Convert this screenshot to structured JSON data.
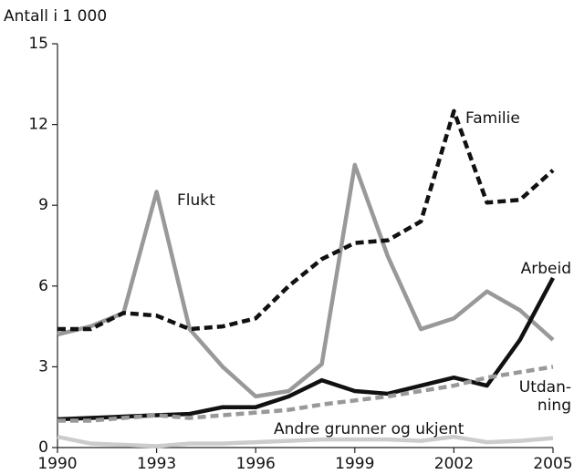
{
  "chart_data": {
    "type": "line",
    "ylabel": "Antall i 1 000",
    "x": [
      1990,
      1991,
      1992,
      1993,
      1994,
      1995,
      1996,
      1997,
      1998,
      1999,
      2000,
      2001,
      2002,
      2003,
      2004,
      2005
    ],
    "xlim": [
      1990,
      2005
    ],
    "xticks": [
      1990,
      1993,
      1996,
      1999,
      2002,
      2005
    ],
    "ylim": [
      0,
      15
    ],
    "yticks": [
      0,
      3,
      6,
      9,
      12,
      15
    ],
    "grid": false,
    "series": [
      {
        "name": "Flukt",
        "color": "#999999",
        "dash": false,
        "values": [
          4.2,
          4.5,
          5.0,
          9.5,
          4.4,
          3.0,
          1.9,
          2.1,
          3.1,
          10.5,
          7.1,
          4.4,
          4.8,
          5.8,
          5.1,
          4.0
        ]
      },
      {
        "name": "Familie",
        "color": "#111111",
        "dash": true,
        "values": [
          4.4,
          4.4,
          5.0,
          4.9,
          4.4,
          4.5,
          4.8,
          6.0,
          7.0,
          7.6,
          7.7,
          8.4,
          12.5,
          9.1,
          9.2,
          10.3
        ]
      },
      {
        "name": "Arbeid",
        "color": "#111111",
        "dash": false,
        "values": [
          1.05,
          1.1,
          1.15,
          1.2,
          1.25,
          1.5,
          1.5,
          1.9,
          2.5,
          2.1,
          2.0,
          2.3,
          2.6,
          2.3,
          4.0,
          6.3
        ]
      },
      {
        "name": "Utdan-\nning",
        "color": "#999999",
        "dash": true,
        "values": [
          1.0,
          1.0,
          1.1,
          1.2,
          1.1,
          1.2,
          1.3,
          1.4,
          1.6,
          1.75,
          1.9,
          2.1,
          2.3,
          2.6,
          2.8,
          3.0
        ]
      },
      {
        "name": "Andre grunner og ukjent",
        "color": "#cccccc",
        "dash": false,
        "values": [
          0.4,
          0.15,
          0.1,
          0.05,
          0.15,
          0.15,
          0.2,
          0.25,
          0.3,
          0.3,
          0.3,
          0.25,
          0.4,
          0.2,
          0.25,
          0.35
        ]
      }
    ]
  }
}
